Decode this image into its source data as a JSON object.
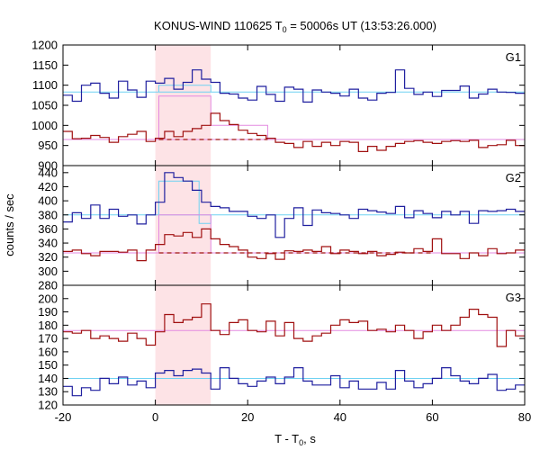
{
  "chart_data": {
    "type": "line",
    "title": {
      "main": "KONUS-WIND 110625 T",
      "sub": "0",
      "rest": " = 50006s UT (13:53:26.000)"
    },
    "xlabel": {
      "main": "T - T",
      "sub": "0",
      "rest": ", s"
    },
    "ylabel": "counts / sec",
    "xlim": [
      -20,
      80
    ],
    "xticks": [
      -20,
      0,
      20,
      40,
      60,
      80
    ],
    "highlight_interval": [
      0,
      12
    ],
    "colors": {
      "blue": "#1f1f9f",
      "red": "#a01010",
      "cyan": "#6fd2f2",
      "pink": "#e38ae0",
      "highlight": "#fde3e6"
    },
    "panels": [
      {
        "label": "G1",
        "ylim": [
          900,
          1200
        ],
        "yticks": [
          900,
          950,
          1000,
          1050,
          1100,
          1150,
          1200
        ],
        "background_levels": [
          {
            "color": "cyan",
            "value": 1083
          },
          {
            "color": "pink",
            "value": 965
          }
        ],
        "excess": [
          {
            "color": "pink",
            "start": 0.768,
            "edges": [
              0.768,
              12.032,
              24.32
            ],
            "values": [
              1073,
              1000
            ]
          },
          {
            "color": "cyan",
            "start": 0.768,
            "edges": [
              0.768,
              12.032
            ],
            "values": [
              1100
            ]
          }
        ],
        "dashed_levels": [
          {
            "color": "red",
            "value": 965,
            "from": 0.768,
            "to": 24.32
          }
        ],
        "series": [
          {
            "color": "blue",
            "edges": [
              -20,
              -18,
              -16,
              -14,
              -12,
              -10,
              -8,
              -6,
              -4,
              -2,
              0,
              2,
              4,
              6,
              8,
              10,
              12,
              14,
              16,
              18,
              20,
              22,
              24,
              26,
              28,
              30,
              32,
              34,
              36,
              38,
              40,
              42,
              44,
              46,
              48,
              50,
              52,
              54,
              56,
              58,
              60,
              62,
              64,
              66,
              68,
              70,
              72,
              74,
              76,
              78,
              80
            ],
            "values": [
              1075,
              1060,
              1100,
              1105,
              1080,
              1068,
              1110,
              1088,
              1070,
              1110,
              1105,
              1117,
              1090,
              1107,
              1138,
              1115,
              1107,
              1080,
              1078,
              1068,
              1063,
              1097,
              1077,
              1060,
              1095,
              1090,
              1058,
              1088,
              1083,
              1080,
              1073,
              1090,
              1068,
              1063,
              1080,
              1082,
              1138,
              1092,
              1077,
              1083,
              1072,
              1087,
              1087,
              1098,
              1068,
              1078,
              1090,
              1083,
              1082,
              1080
            ]
          },
          {
            "color": "red",
            "edges": [
              -20,
              -18,
              -16,
              -14,
              -12,
              -10,
              -8,
              -6,
              -4,
              -2,
              0,
              2,
              4,
              6,
              8,
              10,
              12,
              14,
              16,
              18,
              20,
              22,
              24,
              26,
              28,
              30,
              32,
              34,
              36,
              38,
              40,
              42,
              44,
              46,
              48,
              50,
              52,
              54,
              56,
              58,
              60,
              62,
              64,
              66,
              68,
              70,
              72,
              74,
              76,
              78,
              80
            ],
            "values": [
              985,
              967,
              968,
              975,
              970,
              958,
              972,
              978,
              985,
              960,
              968,
              985,
              972,
              985,
              992,
              1000,
              1030,
              1012,
              1002,
              988,
              980,
              975,
              968,
              958,
              955,
              945,
              960,
              948,
              958,
              950,
              960,
              958,
              935,
              948,
              938,
              948,
              955,
              960,
              962,
              958,
              955,
              960,
              962,
              960,
              963,
              945,
              950,
              952,
              963,
              950
            ]
          }
        ]
      },
      {
        "label": "G2",
        "ylim": [
          280,
          450
        ],
        "yticks": [
          280,
          300,
          320,
          340,
          360,
          380,
          400,
          420,
          440
        ],
        "background_levels": [
          {
            "color": "cyan",
            "value": 380
          },
          {
            "color": "pink",
            "value": 326
          }
        ],
        "excess": [
          {
            "color": "cyan",
            "start": 0.768,
            "edges": [
              0.768,
              9.472,
              12.032
            ],
            "values": [
              428,
              368
            ]
          },
          {
            "color": "pink",
            "start": 0.768,
            "edges": [
              0.768,
              12.032
            ],
            "values": [
              380
            ]
          }
        ],
        "dashed_levels": [
          {
            "color": "red",
            "value": 326,
            "from": 0.768,
            "to": 60
          }
        ],
        "series": [
          {
            "color": "blue",
            "edges": [
              -20,
              -18,
              -16,
              -14,
              -12,
              -10,
              -8,
              -6,
              -4,
              -2,
              0,
              2,
              4,
              6,
              8,
              10,
              12,
              14,
              16,
              18,
              20,
              22,
              24,
              26,
              28,
              30,
              32,
              34,
              36,
              38,
              40,
              42,
              44,
              46,
              48,
              50,
              52,
              54,
              56,
              58,
              60,
              62,
              64,
              66,
              68,
              70,
              72,
              74,
              76,
              78,
              80
            ],
            "values": [
              370,
              383,
              375,
              394,
              375,
              388,
              378,
              380,
              367,
              380,
              398,
              440,
              433,
              428,
              415,
              398,
              392,
              390,
              385,
              385,
              378,
              375,
              380,
              348,
              375,
              390,
              365,
              387,
              383,
              382,
              380,
              375,
              388,
              386,
              384,
              382,
              392,
              376,
              386,
              382,
              376,
              385,
              380,
              385,
              368,
              386,
              385,
              386,
              388,
              385
            ]
          },
          {
            "color": "red",
            "edges": [
              -20,
              -18,
              -16,
              -14,
              -12,
              -10,
              -8,
              -6,
              -4,
              -2,
              0,
              2,
              4,
              6,
              8,
              10,
              12,
              14,
              16,
              18,
              20,
              22,
              24,
              26,
              28,
              30,
              32,
              34,
              36,
              38,
              40,
              42,
              44,
              46,
              48,
              50,
              52,
              54,
              56,
              58,
              60,
              62,
              64,
              66,
              68,
              70,
              72,
              74,
              76,
              78,
              80
            ],
            "values": [
              328,
              330,
              325,
              322,
              328,
              328,
              327,
              330,
              315,
              330,
              338,
              352,
              350,
              355,
              348,
              360,
              346,
              338,
              335,
              330,
              320,
              318,
              325,
              317,
              329,
              328,
              330,
              328,
              335,
              325,
              330,
              328,
              325,
              328,
              322,
              324,
              327,
              326,
              332,
              328,
              346,
              325,
              325,
              318,
              326,
              322,
              332,
              325,
              326,
              330
            ]
          }
        ]
      },
      {
        "label": "G3",
        "ylim": [
          120,
          210
        ],
        "yticks": [
          120,
          130,
          140,
          150,
          160,
          170,
          180,
          190,
          200
        ],
        "background_levels": [
          {
            "color": "pink",
            "value": 176
          },
          {
            "color": "cyan",
            "value": 140
          }
        ],
        "excess": [],
        "dashed_levels": [],
        "series": [
          {
            "color": "red",
            "edges": [
              -20,
              -18,
              -16,
              -14,
              -12,
              -10,
              -8,
              -6,
              -4,
              -2,
              0,
              2,
              4,
              6,
              8,
              10,
              12,
              14,
              16,
              18,
              20,
              22,
              24,
              26,
              28,
              30,
              32,
              34,
              36,
              38,
              40,
              42,
              44,
              46,
              48,
              50,
              52,
              54,
              56,
              58,
              60,
              62,
              64,
              66,
              68,
              70,
              72,
              74,
              76,
              78,
              80
            ],
            "values": [
              175,
              174,
              176,
              170,
              172,
              170,
              168,
              174,
              170,
              165,
              175,
              188,
              182,
              184,
              186,
              196,
              176,
              173,
              182,
              184,
              176,
              175,
              183,
              172,
              182,
              170,
              168,
              172,
              174,
              180,
              184,
              182,
              183,
              176,
              177,
              175,
              180,
              176,
              170,
              175,
              180,
              176,
              180,
              186,
              192,
              188,
              186,
              164,
              176,
              172
            ]
          },
          {
            "color": "blue",
            "edges": [
              -20,
              -18,
              -16,
              -14,
              -12,
              -10,
              -8,
              -6,
              -4,
              -2,
              0,
              2,
              4,
              6,
              8,
              10,
              12,
              14,
              16,
              18,
              20,
              22,
              24,
              26,
              28,
              30,
              32,
              34,
              36,
              38,
              40,
              42,
              44,
              46,
              48,
              50,
              52,
              54,
              56,
              58,
              60,
              62,
              64,
              66,
              68,
              70,
              72,
              74,
              76,
              78,
              80
            ],
            "values": [
              134,
              127,
              133,
              131,
              140,
              136,
              141,
              135,
              138,
              133,
              144,
              146,
              142,
              146,
              147,
              144,
              132,
              148,
              140,
              136,
              134,
              138,
              141,
              136,
              141,
              148,
              138,
              135,
              135,
              142,
              133,
              138,
              132,
              132,
              137,
              132,
              146,
              138,
              133,
              136,
              140,
              148,
              142,
              138,
              136,
              140,
              143,
              131,
              132,
              135
            ]
          }
        ]
      }
    ]
  }
}
